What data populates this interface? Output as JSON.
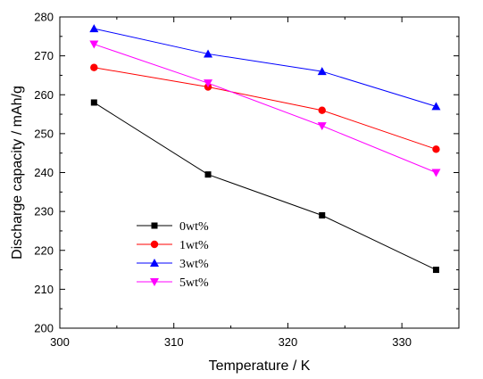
{
  "chart_data": {
    "type": "line",
    "title": "",
    "xlabel": "Temperature / K",
    "ylabel": "Discharge capacity / mAh/g",
    "xlim": [
      300,
      335
    ],
    "ylim": [
      200,
      280
    ],
    "xticks": [
      300,
      310,
      320,
      330
    ],
    "yticks": [
      200,
      210,
      220,
      230,
      240,
      250,
      260,
      270,
      280
    ],
    "x": [
      303,
      313,
      323,
      333
    ],
    "grid": false,
    "legend_position": "lower-left",
    "series": [
      {
        "name": "0wt%",
        "values": [
          258,
          239.5,
          229,
          215
        ],
        "color": "#000000",
        "marker": "square"
      },
      {
        "name": "1wt%",
        "values": [
          267,
          262,
          256,
          246
        ],
        "color": "#ff0000",
        "marker": "circle"
      },
      {
        "name": "3wt%",
        "values": [
          277,
          270.5,
          266,
          257
        ],
        "color": "#0000ff",
        "marker": "triangle-up"
      },
      {
        "name": "5wt%",
        "values": [
          273,
          263,
          252,
          240
        ],
        "color": "#ff00ff",
        "marker": "triangle-down"
      }
    ]
  }
}
